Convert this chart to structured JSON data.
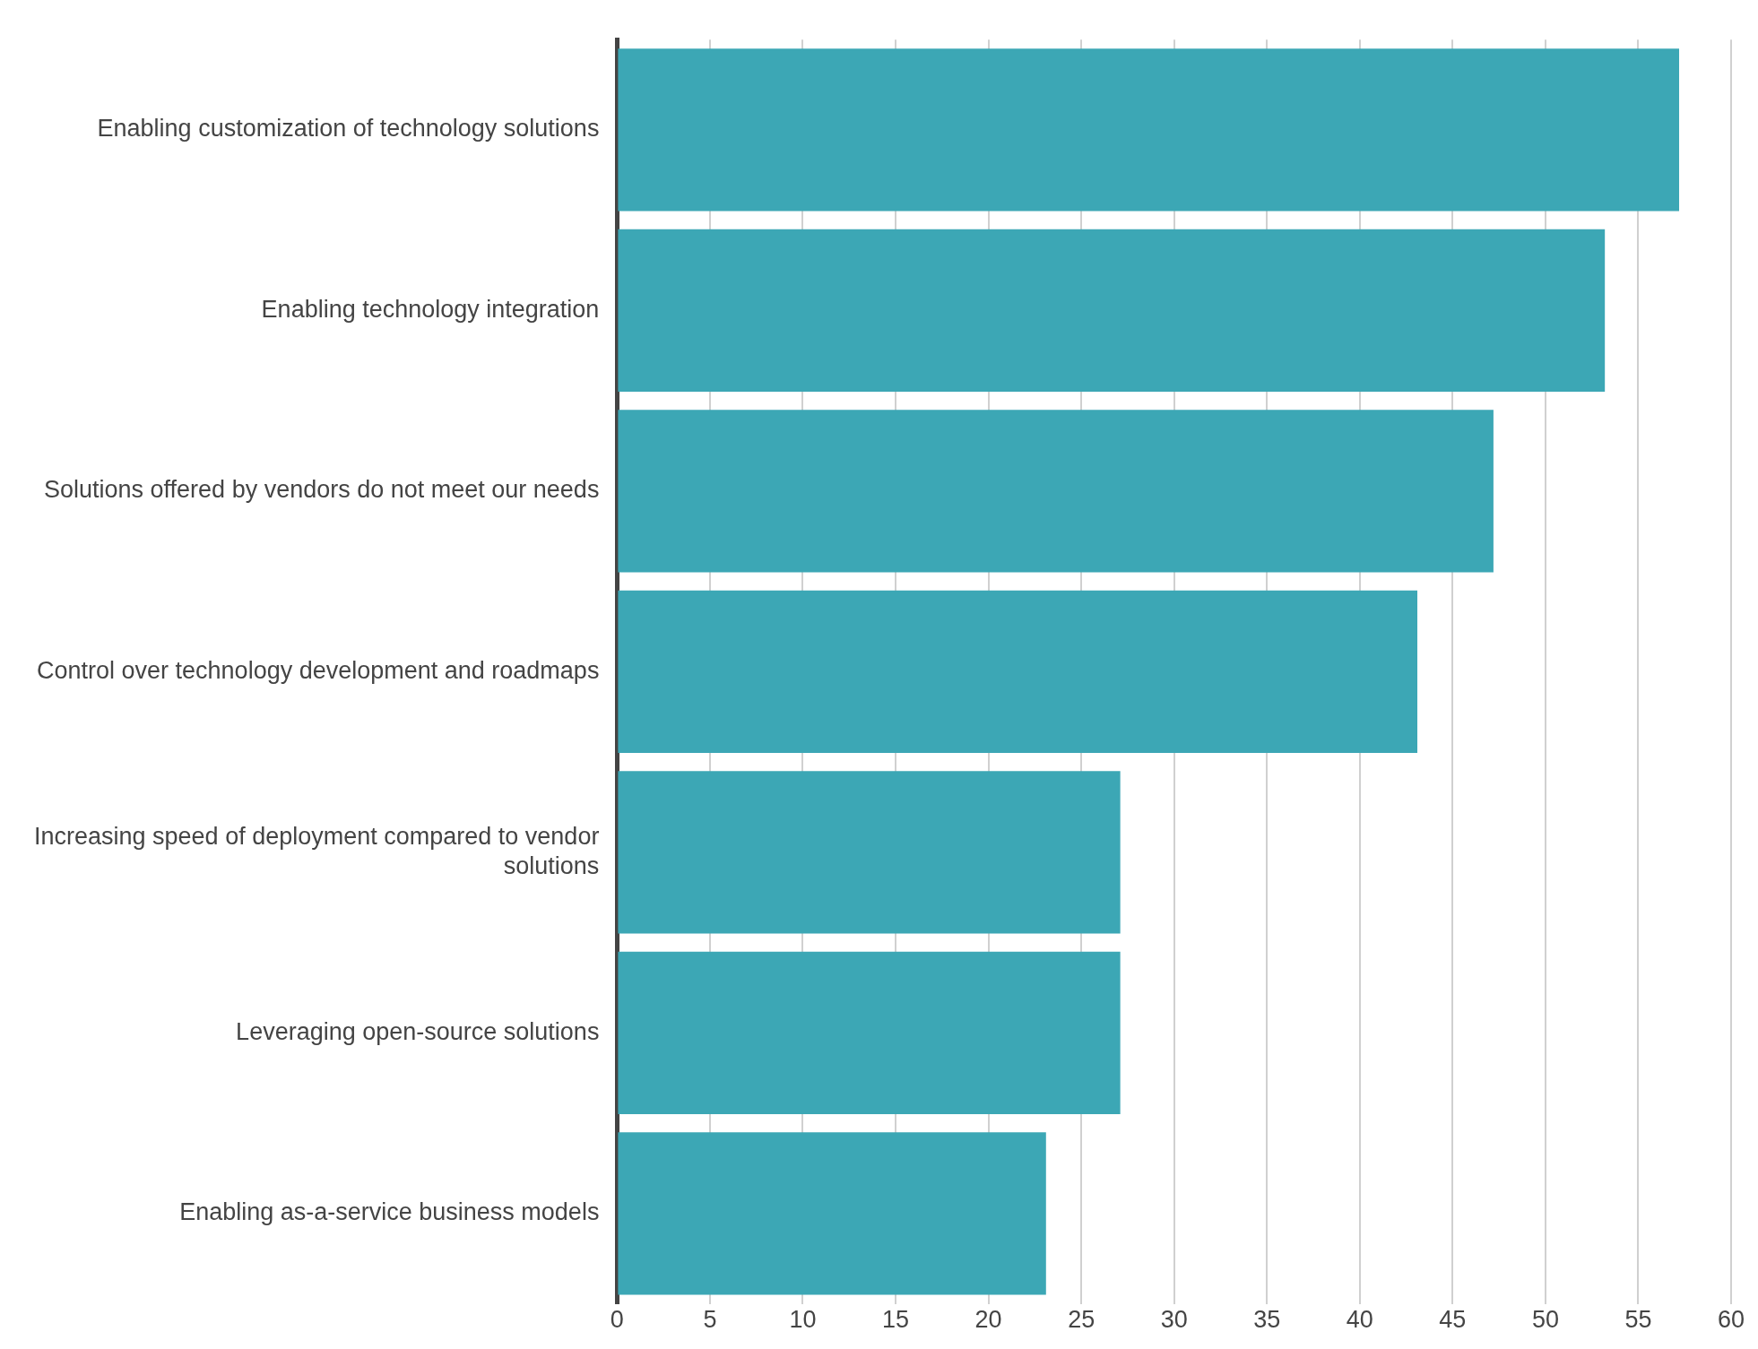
{
  "chart_data": {
    "type": "bar",
    "orientation": "horizontal",
    "categories": [
      "Enabling customization of technology solutions",
      "Enabling technology integration",
      "Solutions offered by vendors do not meet our needs",
      "Control over technology development and roadmaps",
      "Increasing speed of deployment compared to vendor solutions",
      "Leveraging open-source solutions",
      "Enabling as-a-service business models"
    ],
    "values": [
      57.2,
      53.2,
      47.2,
      43.1,
      27.1,
      27.1,
      23.1
    ],
    "color": "#3ca7b5",
    "xlim": [
      0,
      60
    ],
    "xticks": [
      0,
      5,
      10,
      15,
      20,
      25,
      30,
      35,
      40,
      45,
      50,
      55,
      60
    ],
    "grid": "x",
    "legend": false
  }
}
